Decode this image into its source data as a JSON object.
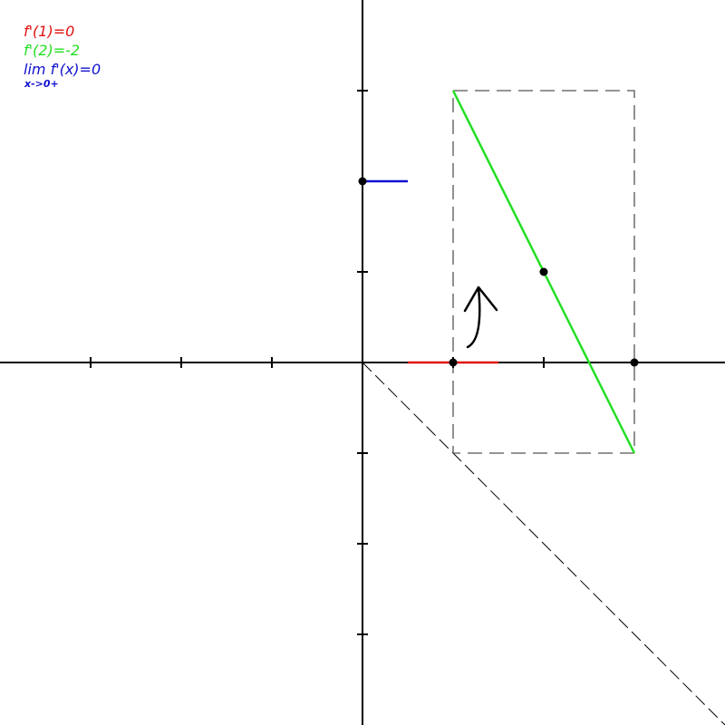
{
  "legend": {
    "red": {
      "text": "f'(1)=0",
      "color": "#e01010"
    },
    "green": {
      "text": "f'(2)=-2",
      "color": "#22e022"
    },
    "blue": {
      "text": "lim f'(x)=0",
      "color": "#1010d0"
    },
    "blue_sub": {
      "text": "x->0+",
      "color": "#1010d0"
    }
  },
  "colors": {
    "axis": "#000000",
    "dashed": "#555555",
    "red": "#e01010",
    "green": "#22e022",
    "blue": "#1010d0",
    "point": "#000000"
  },
  "chart_data": {
    "type": "line",
    "xlim": [
      -4,
      4
    ],
    "ylim": [
      -4,
      4
    ],
    "x_ticks": [
      -3,
      -2,
      -1,
      1,
      2
    ],
    "y_ticks": [
      -3,
      -2,
      -1,
      1,
      3
    ],
    "points": [
      {
        "x": 0,
        "y": 2
      },
      {
        "x": 1,
        "y": 0
      },
      {
        "x": 2,
        "y": 1
      },
      {
        "x": 3,
        "y": 0
      }
    ],
    "segments": [
      {
        "name": "red",
        "x1": 0.5,
        "y1": 0,
        "x2": 1.5,
        "y2": 0
      },
      {
        "name": "blue",
        "x1": 0,
        "y1": 2,
        "x2": 0.5,
        "y2": 2
      },
      {
        "name": "green",
        "x1": 1,
        "y1": 3,
        "x2": 3,
        "y2": -1
      }
    ],
    "dashed_diagonal": {
      "x1": 0,
      "y1": 0,
      "x2": 4,
      "y2": -4
    },
    "dashed_rectangle": {
      "x1": 1,
      "y1": -1,
      "x2": 3,
      "y2": 3
    }
  }
}
